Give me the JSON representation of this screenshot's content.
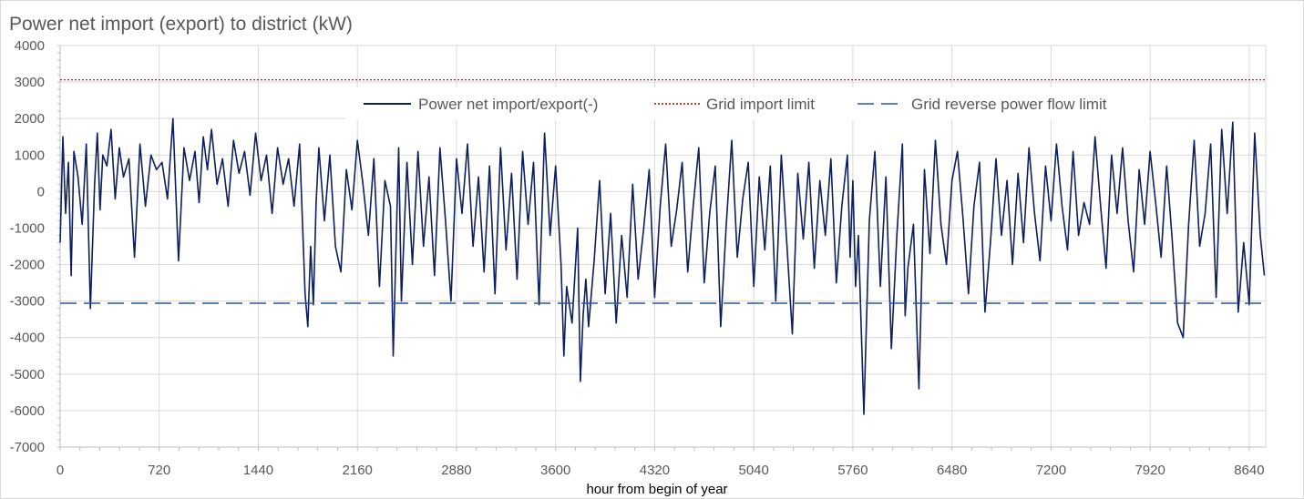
{
  "chart_data": {
    "type": "line",
    "title": "Power net import (export) to district (kW)",
    "xlabel": "hour from begin of year",
    "ylabel": "",
    "xlim": [
      0,
      8760
    ],
    "ylim": [
      -7000,
      4000
    ],
    "x_ticks": [
      0,
      720,
      1440,
      2160,
      2880,
      3600,
      4320,
      5040,
      5760,
      6480,
      7200,
      7920,
      8640
    ],
    "y_ticks": [
      4000,
      3000,
      2000,
      1000,
      0,
      -1000,
      -2000,
      -3000,
      -4000,
      -5000,
      -6000,
      -7000
    ],
    "grid": true,
    "legend_position": "top-center",
    "series": [
      {
        "name": "Power net import/export(-)",
        "color": "#0d1f5c",
        "style": "solid",
        "x": [
          0,
          20,
          40,
          60,
          80,
          100,
          130,
          160,
          190,
          220,
          250,
          270,
          290,
          310,
          340,
          370,
          400,
          430,
          460,
          500,
          540,
          580,
          620,
          660,
          700,
          740,
          780,
          820,
          860,
          900,
          940,
          980,
          1010,
          1040,
          1070,
          1100,
          1140,
          1180,
          1220,
          1260,
          1300,
          1340,
          1380,
          1420,
          1460,
          1500,
          1540,
          1580,
          1620,
          1660,
          1700,
          1740,
          1780,
          1800,
          1820,
          1840,
          1860,
          1880,
          1920,
          1960,
          2000,
          2040,
          2080,
          2120,
          2160,
          2200,
          2240,
          2280,
          2320,
          2360,
          2400,
          2420,
          2440,
          2460,
          2480,
          2520,
          2560,
          2600,
          2640,
          2680,
          2720,
          2760,
          2800,
          2840,
          2880,
          2920,
          2960,
          3000,
          3040,
          3080,
          3120,
          3160,
          3200,
          3240,
          3280,
          3320,
          3360,
          3400,
          3440,
          3480,
          3520,
          3560,
          3600,
          3640,
          3660,
          3680,
          3720,
          3760,
          3780,
          3800,
          3820,
          3840,
          3880,
          3920,
          3960,
          4000,
          4040,
          4080,
          4120,
          4160,
          4200,
          4240,
          4280,
          4320,
          4360,
          4400,
          4440,
          4480,
          4520,
          4560,
          4600,
          4640,
          4680,
          4720,
          4760,
          4800,
          4840,
          4880,
          4920,
          4960,
          5000,
          5040,
          5080,
          5120,
          5160,
          5200,
          5240,
          5280,
          5320,
          5360,
          5400,
          5440,
          5480,
          5520,
          5560,
          5600,
          5640,
          5680,
          5720,
          5740,
          5760,
          5780,
          5800,
          5840,
          5880,
          5920,
          5960,
          6000,
          6040,
          6080,
          6120,
          6140,
          6160,
          6200,
          6240,
          6280,
          6320,
          6360,
          6400,
          6440,
          6480,
          6520,
          6560,
          6600,
          6640,
          6680,
          6720,
          6760,
          6800,
          6840,
          6880,
          6920,
          6960,
          7000,
          7040,
          7080,
          7120,
          7160,
          7200,
          7240,
          7280,
          7320,
          7360,
          7400,
          7440,
          7480,
          7520,
          7560,
          7600,
          7640,
          7680,
          7720,
          7760,
          7800,
          7840,
          7880,
          7920,
          7960,
          8000,
          8040,
          8080,
          8120,
          8160,
          8200,
          8240,
          8280,
          8320,
          8360,
          8400,
          8440,
          8480,
          8520,
          8560,
          8600,
          8640,
          8680,
          8720,
          8750
        ],
        "values": [
          -1400,
          1500,
          -600,
          800,
          -2300,
          1100,
          400,
          -900,
          1300,
          -3200,
          200,
          1600,
          -500,
          1000,
          700,
          1700,
          -200,
          1200,
          400,
          900,
          -1800,
          1300,
          -400,
          1000,
          600,
          800,
          -200,
          2000,
          -1900,
          1200,
          300,
          1100,
          -300,
          1500,
          600,
          1700,
          200,
          900,
          -400,
          1400,
          500,
          1100,
          -100,
          1600,
          300,
          1000,
          -600,
          1200,
          200,
          900,
          -400,
          1300,
          -2800,
          -3700,
          -1500,
          -3100,
          -300,
          1200,
          -800,
          1000,
          -1500,
          -2200,
          600,
          -500,
          1400,
          200,
          -1200,
          900,
          -2600,
          300,
          -400,
          -4500,
          -1600,
          1200,
          -3000,
          800,
          -2000,
          1100,
          -1500,
          400,
          -2300,
          1200,
          -800,
          -3000,
          900,
          -600,
          1300,
          -1500,
          400,
          -2200,
          700,
          -2800,
          1200,
          -1600,
          500,
          -2400,
          1100,
          -900,
          800,
          -3100,
          1600,
          -1200,
          700,
          -2000,
          -4500,
          -2600,
          -3600,
          -1000,
          -5200,
          -3400,
          -2400,
          -3700,
          -1900,
          300,
          -2800,
          -600,
          -3600,
          -1200,
          -2900,
          200,
          -2400,
          -1000,
          600,
          -2900,
          -400,
          1300,
          -1500,
          -500,
          800,
          -2200,
          -400,
          1200,
          -2500,
          -600,
          700,
          -3700,
          -900,
          1400,
          -1800,
          -200,
          800,
          -2600,
          400,
          -1600,
          700,
          -3000,
          1000,
          -1400,
          -3900,
          500,
          -1300,
          800,
          -2100,
          300,
          -1200,
          900,
          -2500,
          -400,
          1000,
          -1800,
          300,
          -2600,
          -1200,
          -6100,
          -800,
          1100,
          -2600,
          400,
          -4300,
          -1200,
          1300,
          -3400,
          -2100,
          -900,
          -5400,
          600,
          -1700,
          1400,
          -900,
          -2000,
          300,
          1100,
          -700,
          -2800,
          -400,
          800,
          -3300,
          -1400,
          900,
          -1200,
          300,
          -2000,
          500,
          -1400,
          1200,
          -600,
          -1900,
          700,
          -800,
          1300,
          -400,
          -1600,
          1100,
          -1200,
          -300,
          -900,
          1500,
          -400,
          -2100,
          1000,
          -600,
          1200,
          -800,
          -2200,
          600,
          -900,
          1100,
          -300,
          -1800,
          700,
          -1300,
          -3600,
          -4000,
          -900,
          1400,
          -1500,
          -600,
          1300,
          -2900,
          1700,
          -600,
          1900,
          -3300,
          -1400,
          -3100,
          1600,
          -1200,
          -2300
        ]
      },
      {
        "name": "Grid import limit",
        "color": "#c00000",
        "style": "dotted",
        "x": [
          0,
          8760
        ],
        "values": [
          3060,
          3060
        ]
      },
      {
        "name": "Grid reverse power flow limit",
        "color": "#2e5597",
        "style": "dashed",
        "x": [
          0,
          8760
        ],
        "values": [
          -3060,
          -3060
        ]
      }
    ]
  }
}
